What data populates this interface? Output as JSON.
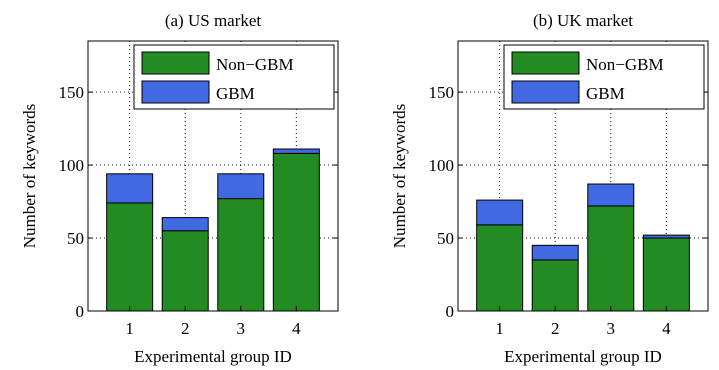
{
  "chart_data": [
    {
      "type": "bar",
      "stacked": true,
      "title": "(a) US market",
      "xlabel": "Experimental group ID",
      "ylabel": "Number of keywords",
      "categories": [
        "1",
        "2",
        "3",
        "4"
      ],
      "ylim": [
        0,
        185
      ],
      "yticks": [
        0,
        50,
        100,
        150
      ],
      "grid": true,
      "legend_position": "top-right",
      "series": [
        {
          "name": "Non−GBM",
          "values": [
            74,
            55,
            77,
            108
          ],
          "color": "#228b22"
        },
        {
          "name": "GBM",
          "values": [
            20,
            9,
            17,
            3
          ],
          "color": "#4169e1"
        }
      ]
    },
    {
      "type": "bar",
      "stacked": true,
      "title": "(b) UK market",
      "xlabel": "Experimental group ID",
      "ylabel": "Number of keywords",
      "categories": [
        "1",
        "2",
        "3",
        "4"
      ],
      "ylim": [
        0,
        185
      ],
      "yticks": [
        0,
        50,
        100,
        150
      ],
      "grid": true,
      "legend_position": "top-right",
      "series": [
        {
          "name": "Non−GBM",
          "values": [
            59,
            35,
            72,
            50
          ],
          "color": "#228b22"
        },
        {
          "name": "GBM",
          "values": [
            17,
            10,
            15,
            2
          ],
          "color": "#4169e1"
        }
      ]
    }
  ]
}
